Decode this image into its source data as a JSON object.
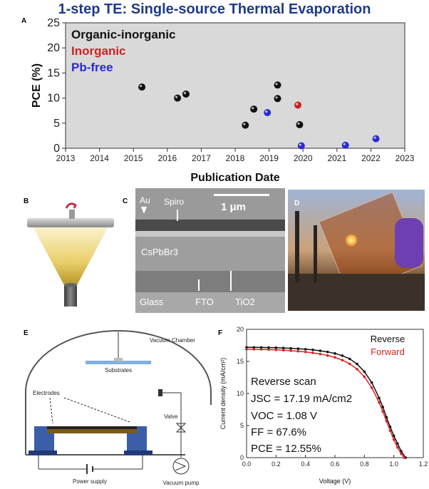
{
  "figure": {
    "title": "1-step TE: Single-source Thermal Evaporation",
    "panel_labels": {
      "a": "A",
      "b": "B",
      "c": "C",
      "d": "D",
      "e": "E",
      "f": "F"
    }
  },
  "panel_c": {
    "layers": [
      "Au",
      "Spiro",
      "CsPbBr3",
      "Glass",
      "FTO",
      "TiO2"
    ],
    "scale_bar": "1 μm"
  },
  "panel_e": {
    "labels": {
      "vacuum_chamber": "Vacuum\nChamber",
      "substrates": "Substrates",
      "electrodes": "Electrodes",
      "valve": "Valve",
      "power_supply": "Power supply",
      "vacuum_pump": "Vacuum pump"
    }
  },
  "chart_data": [
    {
      "type": "scatter",
      "xlabel": "Publication Date",
      "ylabel": "PCE (%)",
      "xlim": [
        2013,
        2023
      ],
      "ylim": [
        0,
        25
      ],
      "xticks": [
        2013,
        2014,
        2015,
        2016,
        2017,
        2018,
        2019,
        2020,
        2021,
        2022,
        2023
      ],
      "yticks": [
        0,
        5,
        10,
        15,
        20,
        25
      ],
      "grid": false,
      "background": "#d9d9d9",
      "legend": {
        "placement": "top-left"
      },
      "series": [
        {
          "name": "Organic-inorganic",
          "color": "#111111",
          "points": [
            [
              2015.25,
              12.2
            ],
            [
              2016.3,
              10.0
            ],
            [
              2016.55,
              10.8
            ],
            [
              2018.3,
              4.6
            ],
            [
              2018.55,
              7.8
            ],
            [
              2019.25,
              12.6
            ],
            [
              2019.25,
              9.9
            ],
            [
              2019.9,
              4.7
            ]
          ]
        },
        {
          "name": "Inorganic",
          "color": "#cc2222",
          "points": [
            [
              2019.85,
              8.6
            ]
          ]
        },
        {
          "name": "Pb-free",
          "color": "#2a2ad4",
          "points": [
            [
              2018.95,
              7.1
            ],
            [
              2019.95,
              0.5
            ],
            [
              2021.25,
              0.6
            ],
            [
              2022.15,
              1.9
            ]
          ]
        }
      ]
    },
    {
      "type": "line",
      "xlabel": "Voltage (V)",
      "ylabel": "Current density (mA/cm²)",
      "xlim": [
        0,
        1.2
      ],
      "ylim": [
        0,
        20
      ],
      "xticks": [
        0.0,
        0.2,
        0.4,
        0.6,
        0.8,
        1.0,
        1.2
      ],
      "yticks": [
        0,
        5,
        10,
        15,
        20
      ],
      "legend": {
        "placement": "top-right"
      },
      "annotations": [
        "Reverse scan",
        "JSC = 17.19 mA/cm2",
        "VOC = 1.08 V",
        "FF = 67.6%",
        "PCE = 12.55%"
      ],
      "series": [
        {
          "name": "Reverse",
          "color": "#111111",
          "x": [
            0.0,
            0.05,
            0.1,
            0.15,
            0.2,
            0.25,
            0.3,
            0.35,
            0.4,
            0.45,
            0.5,
            0.55,
            0.6,
            0.65,
            0.7,
            0.75,
            0.8,
            0.85,
            0.9,
            0.925,
            0.95,
            0.975,
            1.0,
            1.025,
            1.05,
            1.08
          ],
          "y": [
            17.19,
            17.19,
            17.18,
            17.16,
            17.13,
            17.09,
            17.04,
            16.98,
            16.9,
            16.8,
            16.66,
            16.48,
            16.24,
            15.9,
            15.4,
            14.6,
            13.4,
            11.7,
            9.3,
            7.9,
            6.3,
            4.8,
            3.4,
            2.2,
            1.0,
            0.0
          ]
        },
        {
          "name": "Forward",
          "color": "#dd2222",
          "x": [
            0.0,
            0.05,
            0.1,
            0.15,
            0.2,
            0.25,
            0.3,
            0.35,
            0.4,
            0.45,
            0.5,
            0.55,
            0.6,
            0.65,
            0.7,
            0.75,
            0.8,
            0.85,
            0.9,
            0.925,
            0.95,
            0.975,
            1.0,
            1.025,
            1.05,
            1.07
          ],
          "y": [
            16.9,
            16.89,
            16.87,
            16.84,
            16.8,
            16.74,
            16.67,
            16.58,
            16.47,
            16.33,
            16.15,
            15.92,
            15.62,
            15.2,
            14.62,
            13.8,
            12.6,
            10.9,
            8.6,
            7.2,
            5.7,
            4.2,
            2.8,
            1.6,
            0.6,
            0.0
          ]
        }
      ]
    }
  ]
}
